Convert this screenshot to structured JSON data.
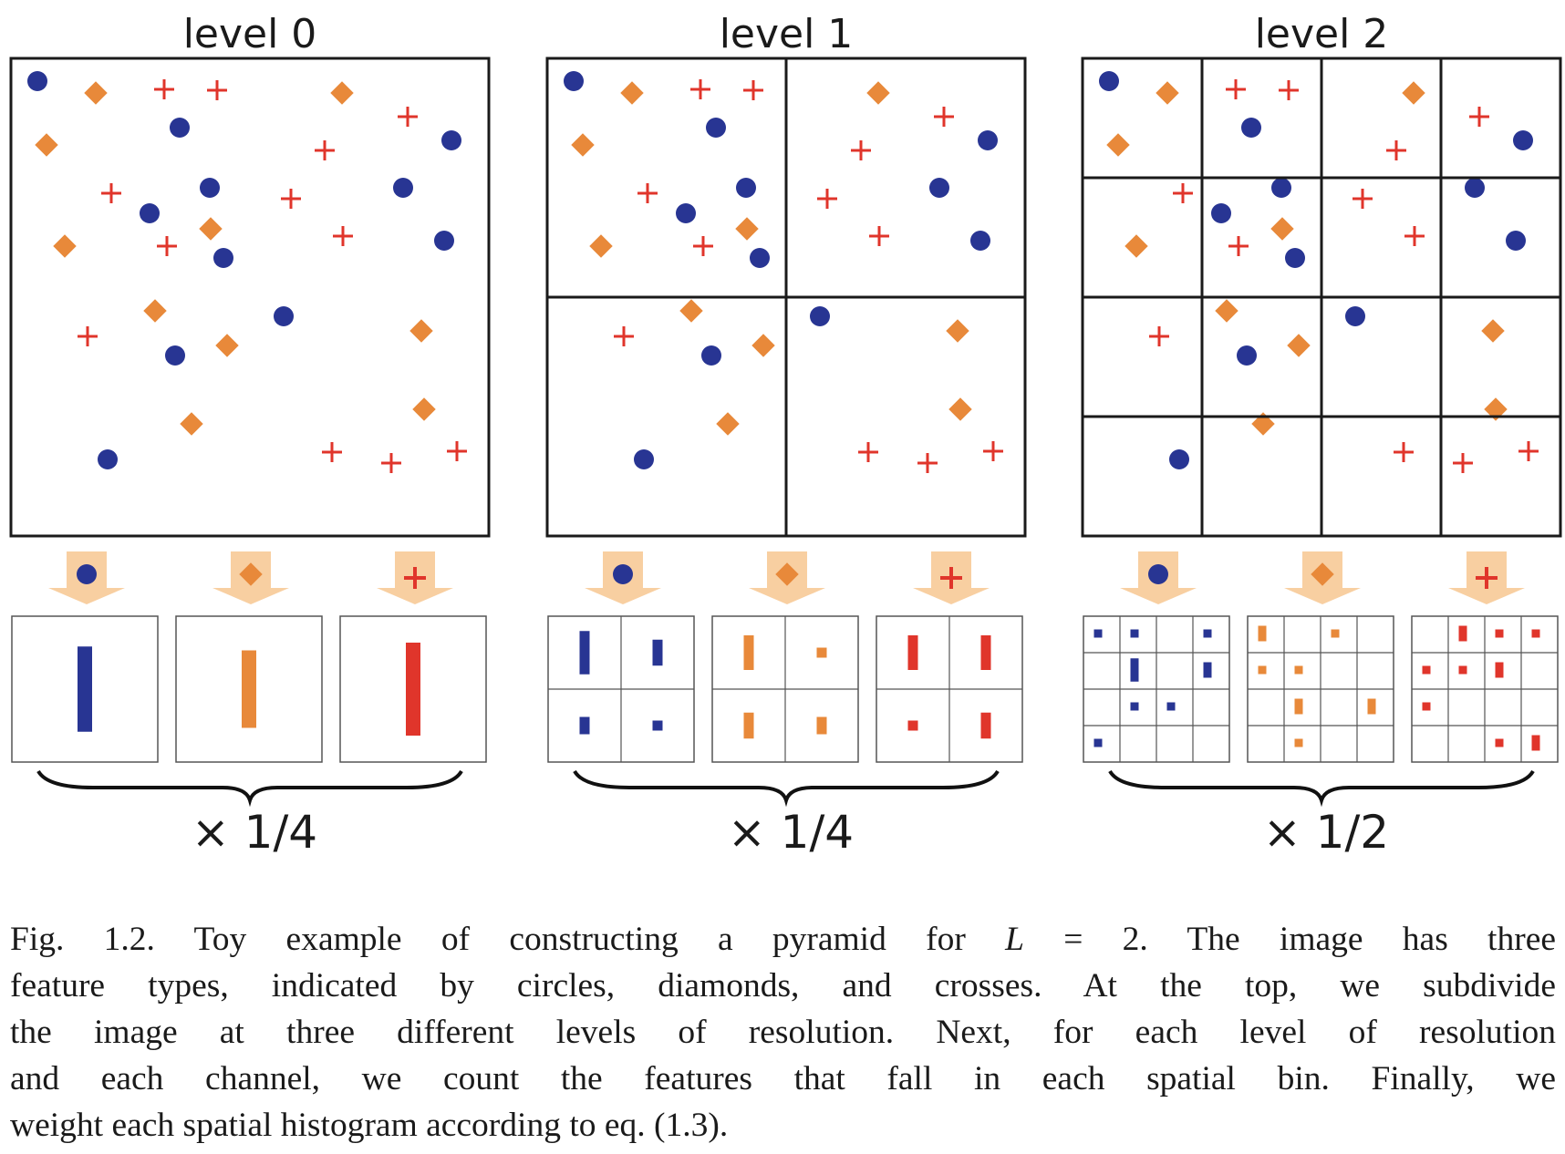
{
  "colors": {
    "circle": "#283593",
    "diamond": "#E8893A",
    "cross": "#E0352B",
    "arrow": "#F8CFA1",
    "frame": "#1a1a1a",
    "grid": "#555555"
  },
  "levels": [
    {
      "title": "level 0",
      "weight": "× 1/4",
      "grid": 1
    },
    {
      "title": "level 1",
      "weight": "× 1/4",
      "grid": 2
    },
    {
      "title": "level 2",
      "weight": "× 1/2",
      "grid": 4
    }
  ],
  "feature_types": [
    "circle",
    "diamond",
    "cross"
  ],
  "caption": {
    "label": "Fig. 1.2.",
    "line1_a": "Fig. 1.2. Toy example of constructing a pyramid for",
    "math_L": "L",
    "line1_b": "= 2. The image has three",
    "line2": "feature types, indicated by circles, diamonds, and crosses. At the top, we subdivide",
    "line3": "the image at three different levels of resolution. Next, for each level of resolution",
    "line4": "and each channel, we count the features that fall in each spatial bin. Finally, we",
    "line5": "weight each spatial histogram according to eq. (1.3)."
  }
}
